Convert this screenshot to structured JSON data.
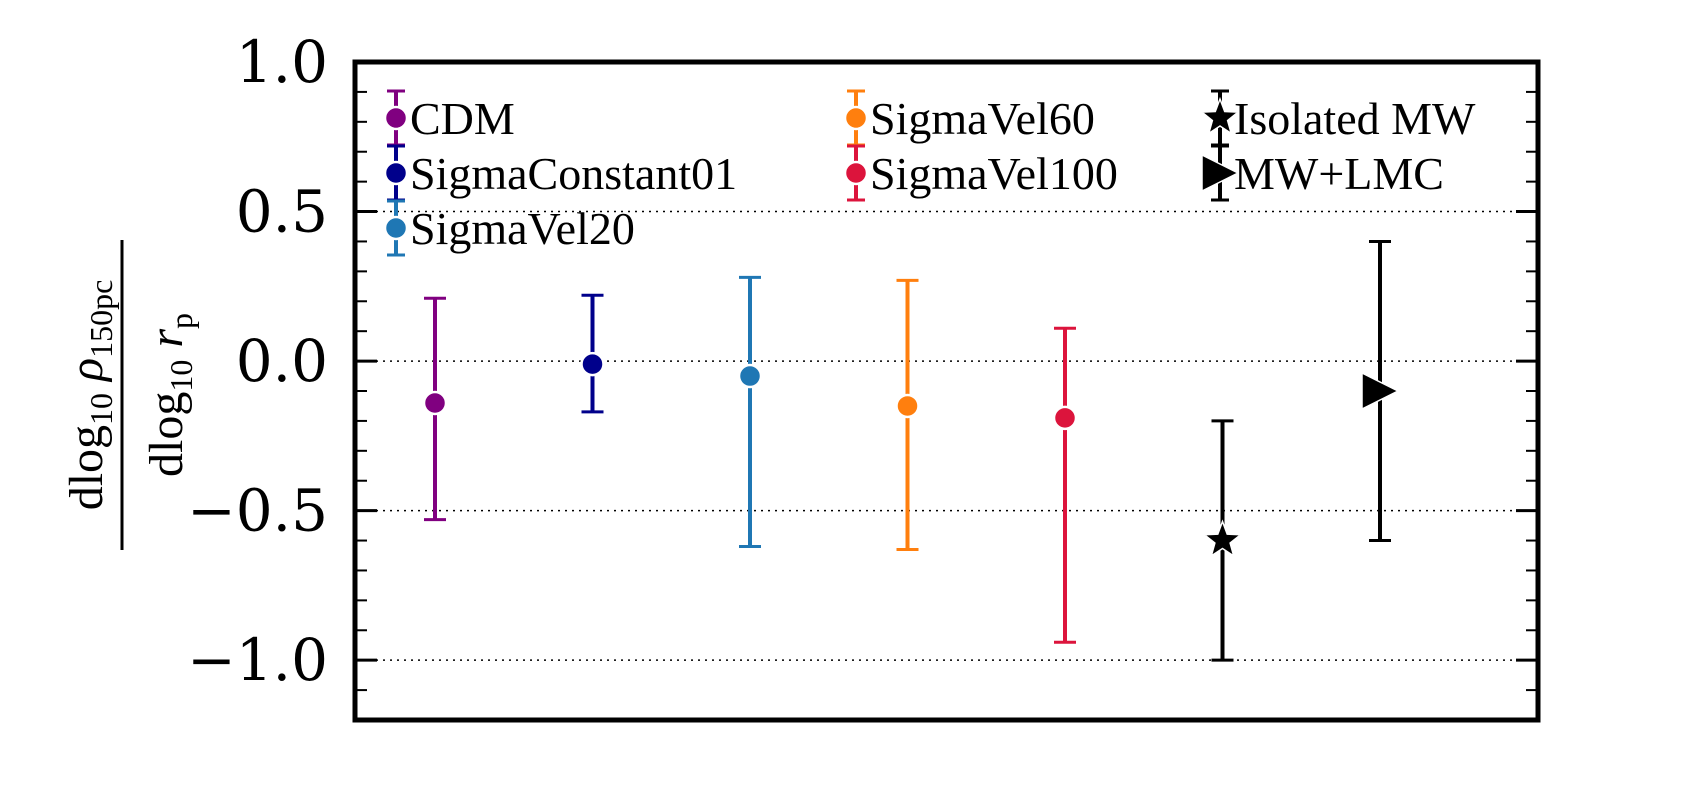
{
  "chart_data": {
    "type": "scatter",
    "title": "",
    "ylabel": {
      "numerator": "dlog10 ρ150pc",
      "denominator": "dlog10 rp"
    },
    "ylim": [
      -1.2,
      1.0
    ],
    "yticks": [
      {
        "value": 1.0,
        "label": "1.0"
      },
      {
        "value": 0.5,
        "label": "0.5"
      },
      {
        "value": 0.0,
        "label": "0.0"
      },
      {
        "value": -0.5,
        "label": "−0.5"
      },
      {
        "value": -1.0,
        "label": "−1.0"
      }
    ],
    "grid": "dotted horizontal at major ticks",
    "legend_placement": "top, three columns",
    "series": [
      {
        "name": "CDM",
        "color": "#800080",
        "marker": "circle",
        "x": 1,
        "y": -0.14,
        "err_low": -0.53,
        "err_high": 0.21
      },
      {
        "name": "SigmaConstant01",
        "color": "#00008B",
        "marker": "circle",
        "x": 2,
        "y": -0.01,
        "err_low": -0.17,
        "err_high": 0.22
      },
      {
        "name": "SigmaVel20",
        "color": "#1F77B4",
        "marker": "circle",
        "x": 3,
        "y": -0.05,
        "err_low": -0.62,
        "err_high": 0.28
      },
      {
        "name": "SigmaVel60",
        "color": "#FF7F0E",
        "marker": "circle",
        "x": 4,
        "y": -0.15,
        "err_low": -0.63,
        "err_high": 0.27
      },
      {
        "name": "SigmaVel100",
        "color": "#DC143C",
        "marker": "circle",
        "x": 5,
        "y": -0.19,
        "err_low": -0.94,
        "err_high": 0.11
      },
      {
        "name": "Isolated MW",
        "color": "#000000",
        "marker": "star",
        "x": 6,
        "y": -0.6,
        "err_low": -1.0,
        "err_high": -0.2
      },
      {
        "name": "MW+LMC",
        "color": "#000000",
        "marker": "triangle-right",
        "x": 7,
        "y": -0.1,
        "err_low": -0.6,
        "err_high": 0.4
      }
    ]
  }
}
